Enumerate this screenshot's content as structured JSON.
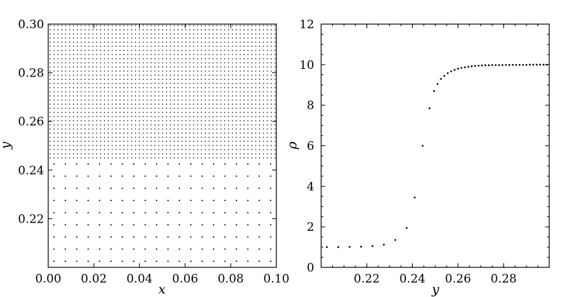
{
  "chart_data": [
    {
      "type": "scatter",
      "title": "",
      "xlabel": "x",
      "ylabel": "y",
      "xlim": [
        0.0,
        0.1
      ],
      "ylim": [
        0.2,
        0.3
      ],
      "xticks": [
        "0.00",
        "0.02",
        "0.04",
        "0.06",
        "0.08",
        "0.10"
      ],
      "yticks": [
        "0.22",
        "0.24",
        "0.26",
        "0.28",
        "0.30"
      ],
      "grid": false,
      "point_grid": {
        "dense_region": {
          "y_range": [
            0.245,
            0.3
          ],
          "x_spacing": 0.0017,
          "y_spacing": 0.0017
        },
        "sparse_region": {
          "y_range": [
            0.2,
            0.245
          ],
          "x_spacing": 0.005,
          "y_spacing": 0.005
        }
      }
    },
    {
      "type": "scatter",
      "title": "",
      "xlabel": "y",
      "ylabel": "ρ",
      "xlim": [
        0.2,
        0.3
      ],
      "ylim": [
        0,
        12
      ],
      "xticks": [
        "0.22",
        "0.24",
        "0.26",
        "0.28"
      ],
      "yticks": [
        "0",
        "2",
        "4",
        "6",
        "8",
        "10",
        "12"
      ],
      "grid": false,
      "x": [
        0.2025,
        0.2075,
        0.2125,
        0.2175,
        0.2225,
        0.2275,
        0.2325,
        0.2375,
        0.241,
        0.2445,
        0.2475,
        0.2495,
        0.251,
        0.2525,
        0.254,
        0.2555,
        0.257,
        0.2585,
        0.26,
        0.2615,
        0.263,
        0.2645,
        0.266,
        0.2675,
        0.269,
        0.2705,
        0.272,
        0.2735,
        0.275,
        0.2765,
        0.278,
        0.2795,
        0.281,
        0.2825,
        0.284,
        0.2855,
        0.287,
        0.2885,
        0.29,
        0.2915,
        0.293,
        0.2945,
        0.296,
        0.2975,
        0.299
      ],
      "y": [
        1.0,
        1.0,
        1.01,
        1.02,
        1.05,
        1.12,
        1.35,
        1.95,
        3.45,
        6.0,
        7.85,
        8.7,
        9.05,
        9.3,
        9.45,
        9.58,
        9.67,
        9.74,
        9.8,
        9.84,
        9.87,
        9.9,
        9.92,
        9.94,
        9.95,
        9.96,
        9.97,
        9.97,
        9.98,
        9.98,
        9.98,
        9.98,
        9.99,
        9.99,
        9.99,
        9.99,
        9.99,
        9.99,
        9.99,
        10.0,
        10.0,
        10.0,
        10.0,
        10.0,
        10.0
      ]
    }
  ]
}
